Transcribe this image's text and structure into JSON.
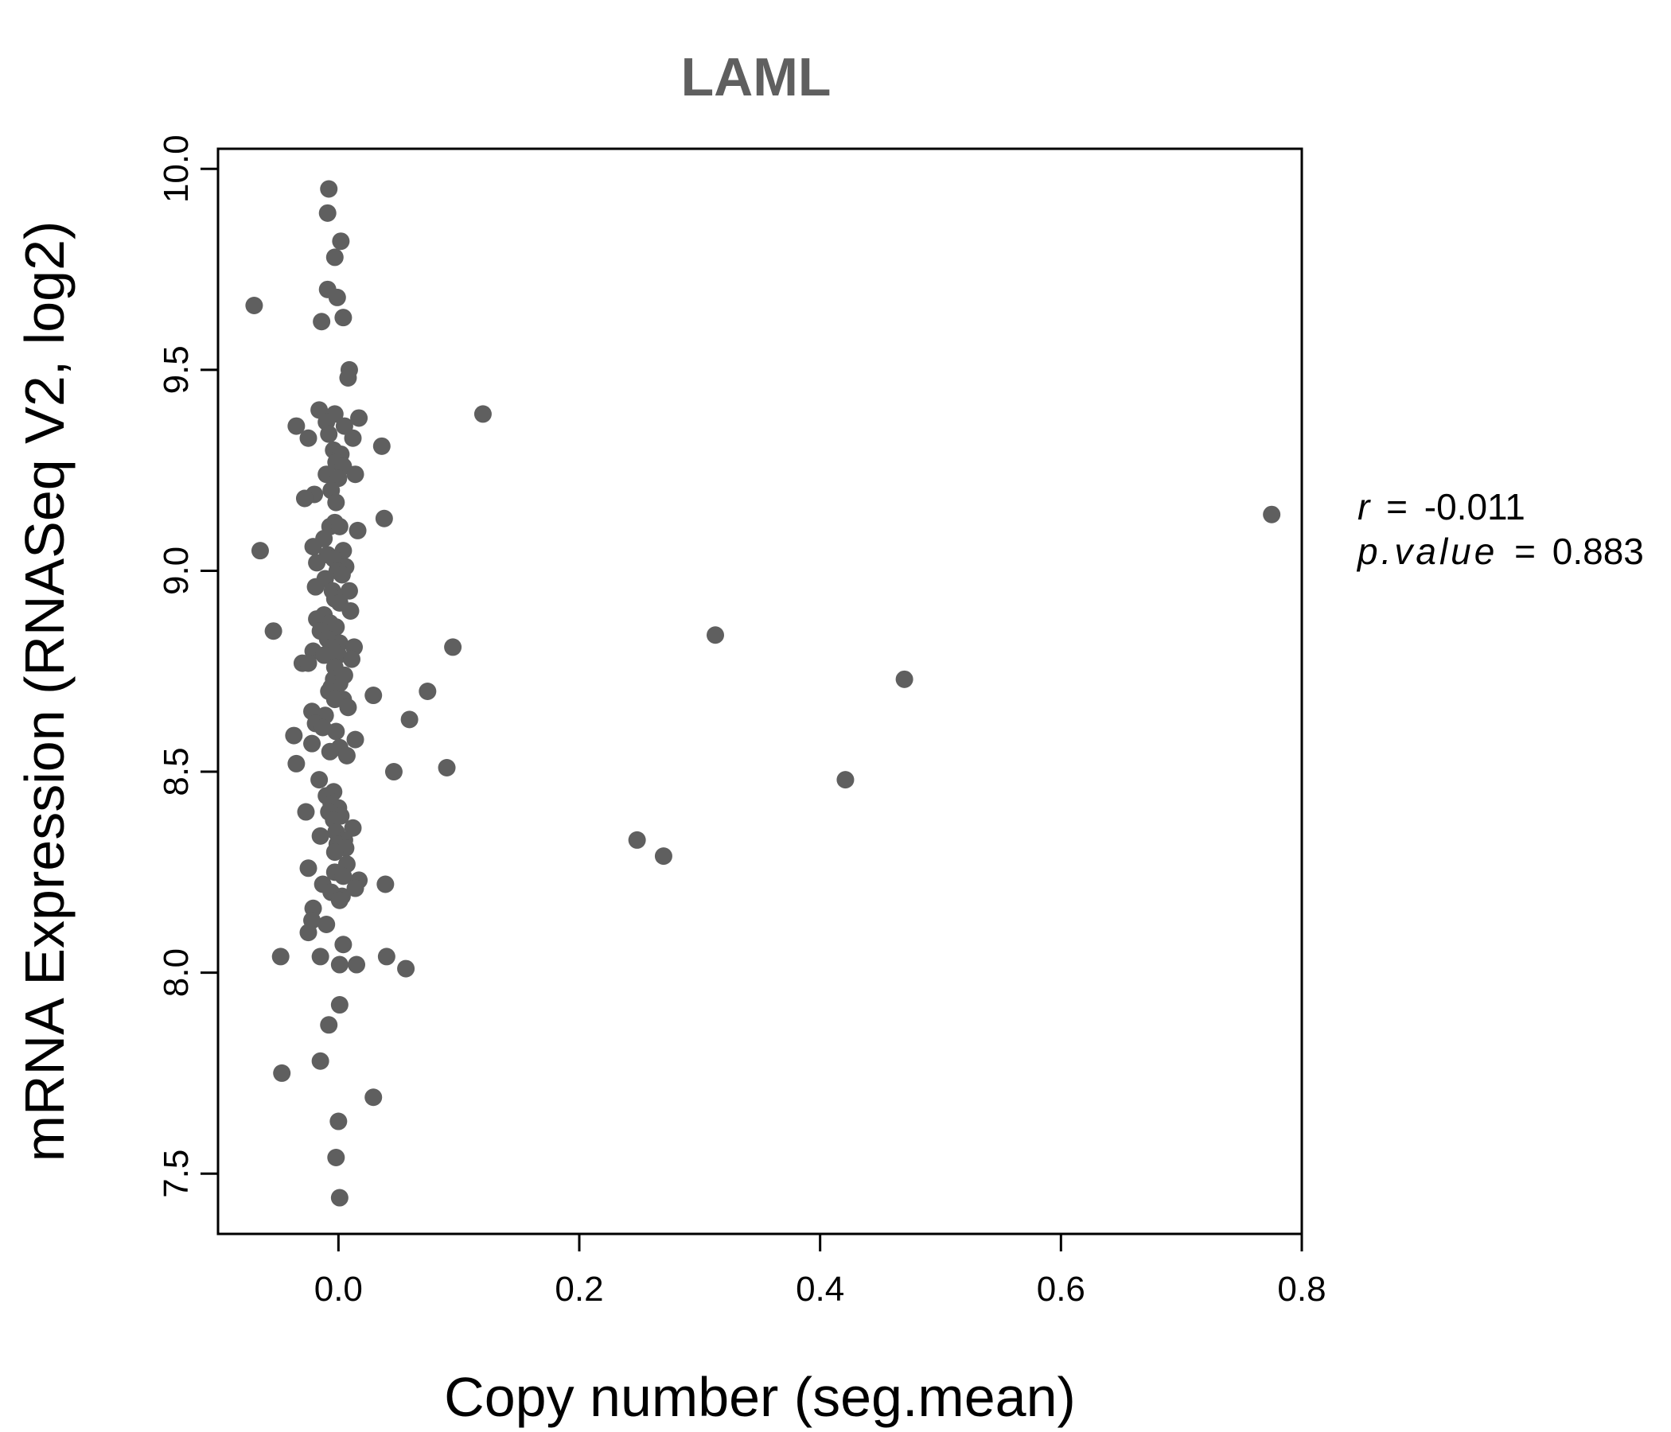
{
  "chart_data": {
    "type": "scatter",
    "title": "LAML",
    "xlabel": "Copy number (seg.mean)",
    "ylabel": "mRNA Expression (RNASeq V2, log2)",
    "xlim": [
      -0.1,
      0.8
    ],
    "ylim": [
      7.35,
      10.05
    ],
    "x_ticks": [
      0.0,
      0.2,
      0.4,
      0.6,
      0.8
    ],
    "x_tick_labels": [
      "0.0",
      "0.2",
      "0.4",
      "0.6",
      "0.8"
    ],
    "y_ticks": [
      7.5,
      8.0,
      8.5,
      9.0,
      9.5,
      10.0
    ],
    "y_tick_labels": [
      "7.5",
      "8.0",
      "8.5",
      "9.0",
      "9.5",
      "10.0"
    ],
    "grid": false,
    "point_color": "#5f5f5f",
    "annotation": {
      "r_label": "r",
      "r_value": "-0.011",
      "p_label": "p.value",
      "p_value": "0.883",
      "eq": "="
    },
    "points": [
      [
        -0.008,
        9.95
      ],
      [
        -0.009,
        9.89
      ],
      [
        0.002,
        9.82
      ],
      [
        -0.003,
        9.78
      ],
      [
        -0.009,
        9.7
      ],
      [
        -0.001,
        9.68
      ],
      [
        -0.07,
        9.66
      ],
      [
        0.004,
        9.63
      ],
      [
        -0.014,
        9.62
      ],
      [
        0.009,
        9.5
      ],
      [
        0.008,
        9.48
      ],
      [
        -0.016,
        9.4
      ],
      [
        -0.003,
        9.39
      ],
      [
        0.12,
        9.39
      ],
      [
        0.017,
        9.38
      ],
      [
        -0.035,
        9.36
      ],
      [
        -0.01,
        9.37
      ],
      [
        0.005,
        9.36
      ],
      [
        -0.008,
        9.34
      ],
      [
        0.012,
        9.33
      ],
      [
        -0.025,
        9.33
      ],
      [
        0.036,
        9.31
      ],
      [
        -0.004,
        9.3
      ],
      [
        0.002,
        9.29
      ],
      [
        -0.002,
        9.27
      ],
      [
        0.004,
        9.26
      ],
      [
        -0.01,
        9.24
      ],
      [
        0.014,
        9.24
      ],
      [
        0.0,
        9.23
      ],
      [
        -0.006,
        9.2
      ],
      [
        -0.02,
        9.19
      ],
      [
        -0.028,
        9.18
      ],
      [
        -0.002,
        9.17
      ],
      [
        0.775,
        9.14
      ],
      [
        0.038,
        9.13
      ],
      [
        -0.003,
        9.12
      ],
      [
        -0.007,
        9.11
      ],
      [
        0.001,
        9.11
      ],
      [
        0.016,
        9.1
      ],
      [
        -0.012,
        9.08
      ],
      [
        -0.021,
        9.06
      ],
      [
        -0.065,
        9.05
      ],
      [
        0.004,
        9.05
      ],
      [
        -0.009,
        9.04
      ],
      [
        -0.004,
        9.03
      ],
      [
        -0.018,
        9.02
      ],
      [
        0.006,
        9.01
      ],
      [
        -0.001,
        9.0
      ],
      [
        0.003,
        8.99
      ],
      [
        -0.011,
        8.98
      ],
      [
        -0.019,
        8.96
      ],
      [
        0.009,
        8.95
      ],
      [
        -0.005,
        8.95
      ],
      [
        -0.003,
        8.93
      ],
      [
        0.001,
        8.92
      ],
      [
        0.01,
        8.9
      ],
      [
        -0.012,
        8.89
      ],
      [
        -0.018,
        8.88
      ],
      [
        -0.007,
        8.87
      ],
      [
        -0.002,
        8.86
      ],
      [
        -0.054,
        8.85
      ],
      [
        -0.015,
        8.85
      ],
      [
        0.313,
        8.84
      ],
      [
        -0.009,
        8.83
      ],
      [
        0.001,
        8.82
      ],
      [
        0.013,
        8.81
      ],
      [
        0.095,
        8.81
      ],
      [
        -0.006,
        8.81
      ],
      [
        -0.021,
        8.8
      ],
      [
        0.0,
        8.79
      ],
      [
        -0.012,
        8.79
      ],
      [
        0.011,
        8.78
      ],
      [
        -0.03,
        8.77
      ],
      [
        -0.025,
        8.77
      ],
      [
        -0.003,
        8.76
      ],
      [
        0.005,
        8.74
      ],
      [
        -0.004,
        8.73
      ],
      [
        0.47,
        8.73
      ],
      [
        0.001,
        8.72
      ],
      [
        -0.006,
        8.71
      ],
      [
        0.074,
        8.7
      ],
      [
        -0.008,
        8.7
      ],
      [
        0.029,
        8.69
      ],
      [
        0.004,
        8.68
      ],
      [
        -0.003,
        8.68
      ],
      [
        0.008,
        8.66
      ],
      [
        -0.022,
        8.65
      ],
      [
        -0.011,
        8.64
      ],
      [
        0.059,
        8.63
      ],
      [
        -0.019,
        8.62
      ],
      [
        -0.013,
        8.61
      ],
      [
        -0.002,
        8.6
      ],
      [
        -0.037,
        8.59
      ],
      [
        0.014,
        8.58
      ],
      [
        -0.022,
        8.57
      ],
      [
        0.001,
        8.56
      ],
      [
        -0.007,
        8.55
      ],
      [
        0.007,
        8.54
      ],
      [
        -0.035,
        8.52
      ],
      [
        0.09,
        8.51
      ],
      [
        0.046,
        8.5
      ],
      [
        -0.016,
        8.48
      ],
      [
        0.421,
        8.48
      ],
      [
        -0.004,
        8.45
      ],
      [
        -0.01,
        8.44
      ],
      [
        -0.006,
        8.42
      ],
      [
        0.0,
        8.41
      ],
      [
        -0.008,
        8.4
      ],
      [
        -0.027,
        8.4
      ],
      [
        0.002,
        8.39
      ],
      [
        -0.004,
        8.38
      ],
      [
        0.012,
        8.36
      ],
      [
        -0.002,
        8.35
      ],
      [
        -0.015,
        8.34
      ],
      [
        0.005,
        8.33
      ],
      [
        0.248,
        8.33
      ],
      [
        -0.001,
        8.32
      ],
      [
        0.006,
        8.31
      ],
      [
        -0.003,
        8.3
      ],
      [
        0.27,
        8.29
      ],
      [
        0.007,
        8.27
      ],
      [
        -0.025,
        8.26
      ],
      [
        -0.003,
        8.25
      ],
      [
        0.004,
        8.24
      ],
      [
        0.017,
        8.23
      ],
      [
        -0.013,
        8.22
      ],
      [
        0.039,
        8.22
      ],
      [
        0.014,
        8.21
      ],
      [
        -0.006,
        8.2
      ],
      [
        0.003,
        8.19
      ],
      [
        0.001,
        8.18
      ],
      [
        -0.021,
        8.16
      ],
      [
        -0.022,
        8.13
      ],
      [
        -0.01,
        8.12
      ],
      [
        -0.025,
        8.1
      ],
      [
        0.004,
        8.07
      ],
      [
        -0.048,
        8.04
      ],
      [
        -0.015,
        8.04
      ],
      [
        0.04,
        8.04
      ],
      [
        0.001,
        8.02
      ],
      [
        0.015,
        8.02
      ],
      [
        0.056,
        8.01
      ],
      [
        0.001,
        7.92
      ],
      [
        -0.008,
        7.87
      ],
      [
        -0.015,
        7.78
      ],
      [
        -0.047,
        7.75
      ],
      [
        0.029,
        7.69
      ],
      [
        0.0,
        7.63
      ],
      [
        -0.002,
        7.54
      ],
      [
        0.001,
        7.44
      ]
    ]
  }
}
